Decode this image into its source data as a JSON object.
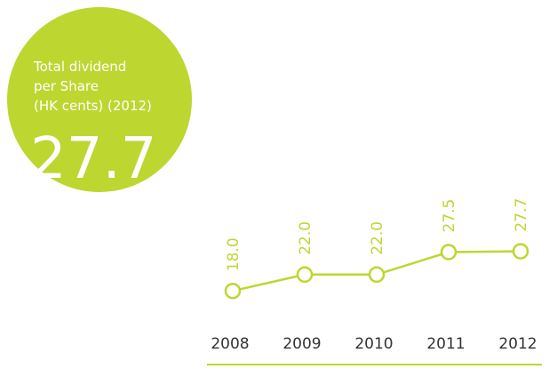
{
  "chart_data": {
    "type": "line",
    "title_lines": [
      "Total dividend",
      "per Share",
      "(HK cents) (2012)"
    ],
    "categories": [
      "2008",
      "2009",
      "2010",
      "2011",
      "2012"
    ],
    "values": [
      18.0,
      22.0,
      22.0,
      27.5,
      27.7
    ],
    "value_labels": [
      "18.0",
      "22.0",
      "22.0",
      "27.5",
      "27.7"
    ],
    "color": "#bed630",
    "ylim": [
      0,
      60
    ]
  }
}
